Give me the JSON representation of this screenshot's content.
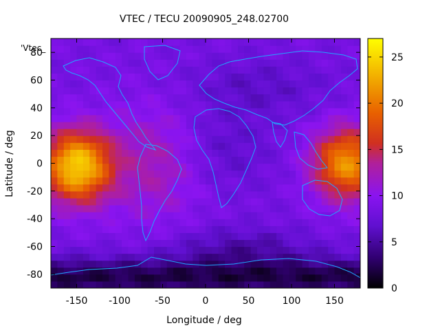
{
  "chart_data": {
    "type": "heatmap",
    "title": "VTEC / TECU 20090905_248.02700",
    "xlabel": "Longitude / deg",
    "ylabel": "Latitude / deg",
    "legend_key": "'Vtec_",
    "xlim": [
      -180,
      180
    ],
    "ylim": [
      -90,
      90
    ],
    "x_ticks": [
      -150,
      -100,
      -50,
      0,
      50,
      100,
      150
    ],
    "y_ticks": [
      -80,
      -60,
      -40,
      -20,
      0,
      20,
      40,
      60,
      80
    ],
    "x_tick_labels": [
      "-150",
      "-100",
      "-50",
      "0",
      "50",
      "100",
      "150"
    ],
    "y_tick_labels": [
      "-80",
      "-60",
      "-40",
      "-20",
      "0",
      "20",
      "40",
      "60",
      "80"
    ],
    "colorbar": {
      "range": [
        0,
        27
      ],
      "ticks": [
        0,
        5,
        10,
        15,
        20,
        25
      ],
      "tick_labels": [
        "0",
        "5",
        "10",
        "15",
        "20",
        "25"
      ],
      "palette": "black-blue-purple-red-orange-yellow"
    },
    "grid": false,
    "overlay": "coastlines",
    "regions": [
      {
        "lon": [
          -180,
          -110
        ],
        "lat": [
          -25,
          25
        ],
        "vtec_peak": 25
      },
      {
        "lon": [
          130,
          180
        ],
        "lat": [
          -20,
          25
        ],
        "vtec_peak": 21
      },
      {
        "lon": [
          -180,
          180
        ],
        "lat": [
          -90,
          -60
        ],
        "vtec_min": 1
      },
      {
        "lon": [
          -180,
          180
        ],
        "lat": [
          40,
          90
        ],
        "vtec_mean": 6
      }
    ]
  }
}
